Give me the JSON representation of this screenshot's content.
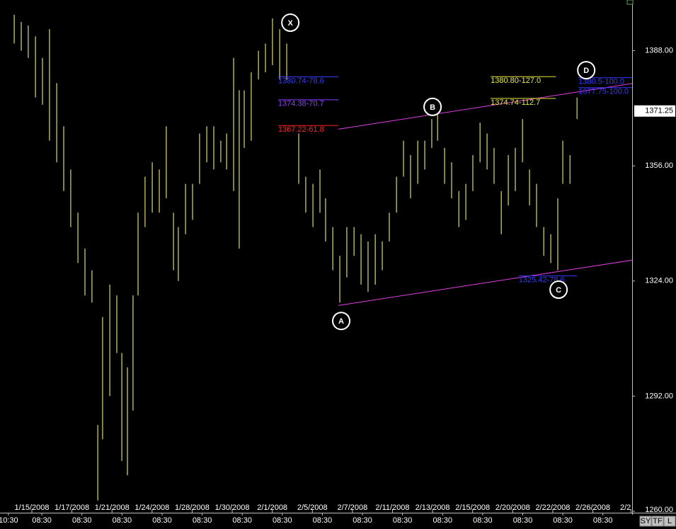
{
  "chart_data": {
    "type": "ohlc",
    "color": "#dcdc64",
    "xlim": [
      -1.59,
      29.96
    ],
    "ylim": [
      1260,
      1402.1
    ],
    "x": [
      -0.88,
      -0.53,
      -0.18,
      0.18,
      0.53,
      0.88,
      1.24,
      1.59,
      1.94,
      2.3,
      2.65,
      3.0,
      3.29,
      3.53,
      3.89,
      4.24,
      4.49,
      4.77,
      5.05,
      5.3,
      5.65,
      6.01,
      6.36,
      6.71,
      7.07,
      7.31,
      7.67,
      8.02,
      8.37,
      8.73,
      9.08,
      9.43,
      9.72,
      10.07,
      10.35,
      10.6,
      10.95,
      11.31,
      11.66,
      12.01,
      12.37,
      12.72,
      13.32,
      13.67,
      14.03,
      14.38,
      14.66,
      15.02,
      15.37,
      15.72,
      16.08,
      16.43,
      16.78,
      17.14,
      17.49,
      17.84,
      18.2,
      18.55,
      18.9,
      19.26,
      19.61,
      19.96,
      20.25,
      20.6,
      20.95,
      21.31,
      21.66,
      22.01,
      22.37,
      22.72,
      23.07,
      23.43,
      23.78,
      24.13,
      24.49,
      24.84,
      25.19,
      25.55,
      25.9,
      26.25,
      26.5,
      26.86,
      27.21
    ],
    "high": [
      1398,
      1396,
      1395,
      1392,
      1386,
      1394,
      1379,
      1367,
      1355,
      1343,
      1333,
      1327,
      1284,
      1314,
      1323,
      1320,
      1304,
      1300,
      1320,
      1343,
      1353,
      1357,
      1355,
      1367,
      1343,
      1339,
      1351,
      1351,
      1365,
      1367,
      1367,
      1363,
      1365,
      1386,
      1377,
      1377,
      1382,
      1388,
      1390,
      1397,
      1394,
      1390,
      1365,
      1353,
      1351,
      1355,
      1347,
      1339,
      1331,
      1339,
      1339,
      1337,
      1335,
      1337,
      1335,
      1343,
      1353,
      1363,
      1359,
      1363,
      1363,
      1369,
      1371,
      1361,
      1357,
      1349,
      1351,
      1359,
      1368,
      1365,
      1361,
      1349,
      1359,
      1361,
      1369,
      1355,
      1351,
      1339,
      1337,
      1347,
      1363,
      1359,
      1375
    ],
    "low": [
      1390,
      1388,
      1386,
      1375,
      1373,
      1363,
      1357,
      1349,
      1339,
      1329,
      1320,
      1318,
      1263,
      1280,
      1292,
      1304,
      1274,
      1270,
      1288,
      1320,
      1339,
      1343,
      1343,
      1347,
      1327,
      1324,
      1337,
      1341,
      1351,
      1357,
      1355,
      1357,
      1355,
      1349,
      1333,
      1361,
      1363,
      1380,
      1382,
      1384,
      1380,
      1380,
      1351,
      1343,
      1339,
      1343,
      1335,
      1327,
      1318,
      1325,
      1331,
      1323,
      1321,
      1323,
      1327,
      1335,
      1343,
      1353,
      1347,
      1351,
      1355,
      1361,
      1363,
      1351,
      1347,
      1339,
      1341,
      1349,
      1357,
      1355,
      1351,
      1337,
      1345,
      1349,
      1357,
      1345,
      1339,
      1331,
      1329,
      1327,
      1351,
      1351,
      1369
    ],
    "yticks": [
      {
        "value": 1388,
        "label": "1388.00"
      },
      {
        "value": 1356,
        "label": "1356.00"
      },
      {
        "value": 1324,
        "label": "1324.00"
      },
      {
        "value": 1292,
        "label": "1292.00"
      },
      {
        "value": 1260,
        "label": "1260.00"
      }
    ],
    "last_price": 1371.25,
    "xticks": [
      {
        "value": 0,
        "label": "1/15/2008"
      },
      {
        "value": 2,
        "label": "1/17/2008"
      },
      {
        "value": 4,
        "label": "1/21/2008"
      },
      {
        "value": 6,
        "label": "1/24/2008"
      },
      {
        "value": 8,
        "label": "1/28/2008"
      },
      {
        "value": 10,
        "label": "1/30/2008"
      },
      {
        "value": 12,
        "label": "2/1/2008"
      },
      {
        "value": 14,
        "label": "2/5/2008"
      },
      {
        "value": 16,
        "label": "2/7/2008"
      },
      {
        "value": 18,
        "label": "2/11/2008"
      },
      {
        "value": 20,
        "label": "2/13/2008"
      },
      {
        "value": 22,
        "label": "2/15/2008"
      },
      {
        "value": 24,
        "label": "2/20/2008"
      },
      {
        "value": 26,
        "label": "2/22/2008"
      },
      {
        "value": 28,
        "label": "2/26/2008"
      },
      {
        "value": 29.9,
        "label": "2/2"
      }
    ],
    "time_ticks": [
      {
        "value": -1.17,
        "label": "10:30"
      },
      {
        "value": 0.5,
        "label": "08:30"
      },
      {
        "value": 2.5,
        "label": "08:30"
      },
      {
        "value": 4.5,
        "label": "08:30"
      },
      {
        "value": 6.5,
        "label": "08:30"
      },
      {
        "value": 8.5,
        "label": "08:30"
      },
      {
        "value": 10.5,
        "label": "08:30"
      },
      {
        "value": 12.5,
        "label": "08:30"
      },
      {
        "value": 14.5,
        "label": "08:30"
      },
      {
        "value": 16.5,
        "label": "08:30"
      },
      {
        "value": 18.5,
        "label": "08:30"
      },
      {
        "value": 20.5,
        "label": "08:30"
      },
      {
        "value": 22.5,
        "label": "08:30"
      },
      {
        "value": 24.5,
        "label": "08:30"
      },
      {
        "value": 26.5,
        "label": "08:30"
      },
      {
        "value": 28.5,
        "label": "08:30"
      }
    ],
    "pattern_points": [
      {
        "label": "X",
        "x": 12.9,
        "y": 1395.8
      },
      {
        "label": "A",
        "x": 15.44,
        "y": 1312.9
      },
      {
        "label": "B",
        "x": 20.0,
        "y": 1372.4
      },
      {
        "label": "C",
        "x": 26.29,
        "y": 1321.6
      },
      {
        "label": "D",
        "x": 27.67,
        "y": 1382.6
      }
    ],
    "trend_lines": [
      {
        "color": "#e040e0",
        "x": [
          15.3,
          29.96
        ],
        "y": [
          1366.2,
          1378.9
        ]
      },
      {
        "color": "#e040e0",
        "x": [
          15.3,
          29.96
        ],
        "y": [
          1317.2,
          1329.8
        ]
      }
    ],
    "fib_levels": [
      {
        "label": "1380.74-78.6",
        "value": 1380.74,
        "x": [
          12.29,
          15.3
        ],
        "color": "#3838ff"
      },
      {
        "label": "1374.38-70.7",
        "value": 1374.38,
        "x": [
          12.29,
          15.3
        ],
        "color": "#8a3cff"
      },
      {
        "label": "1367.22-61.8",
        "value": 1367.22,
        "x": [
          12.29,
          15.3
        ],
        "color": "#ff2020"
      },
      {
        "label": "1380.80-127.0",
        "value": 1380.8,
        "x": [
          22.9,
          26.15
        ],
        "color": "#e8e840"
      },
      {
        "label": "1374.74-112.7",
        "value": 1374.74,
        "x": [
          22.9,
          26.15
        ],
        "color": "#e8e840"
      },
      {
        "label": "1380.5-100.0",
        "value": 1380.5,
        "x": [
          27.28,
          29.96
        ],
        "color": "#3838ff"
      },
      {
        "label": "1377.75-100.0",
        "value": 1377.75,
        "x": [
          27.28,
          29.96
        ],
        "color": "#3838ff"
      },
      {
        "label": "1325.42-78.6",
        "value": 1325.42,
        "x": [
          24.3,
          27.2
        ],
        "color": "#3838ff"
      }
    ]
  },
  "toolbar": {
    "buttons": [
      "SY",
      "TF",
      "L"
    ]
  }
}
